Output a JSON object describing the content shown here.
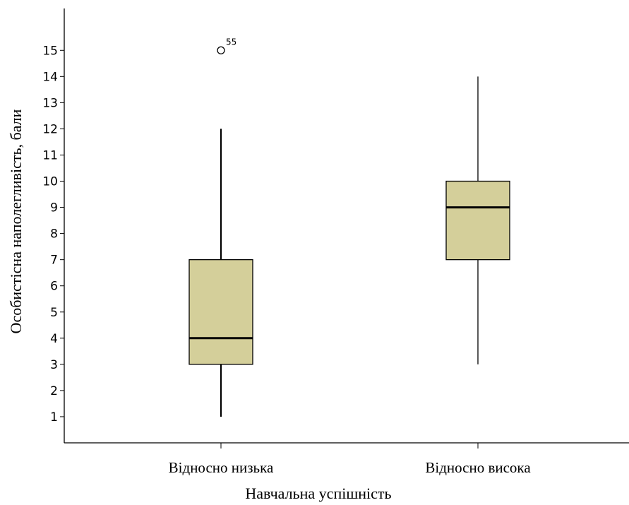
{
  "chart_data": {
    "type": "boxplot",
    "xlabel": "Навчальна успішність",
    "ylabel": "Особистісна наполегливість, бали",
    "ylim": [
      0,
      16.6
    ],
    "yticks": [
      1,
      2,
      3,
      4,
      5,
      6,
      7,
      8,
      9,
      10,
      11,
      12,
      13,
      14,
      15
    ],
    "categories": [
      "Відносно низька",
      "Відносно висока"
    ],
    "boxes": [
      {
        "category": "Відносно низька",
        "whisker_low": 1,
        "q1": 3,
        "median": 4,
        "q3": 7,
        "whisker_high": 12,
        "outliers": [
          {
            "value": 15,
            "label": "55"
          }
        ]
      },
      {
        "category": "Відносно висока",
        "whisker_low": 3,
        "q1": 7,
        "median": 9,
        "q3": 10,
        "whisker_high": 14,
        "outliers": []
      }
    ],
    "box_color": "#d4cf9a",
    "grid": false
  }
}
